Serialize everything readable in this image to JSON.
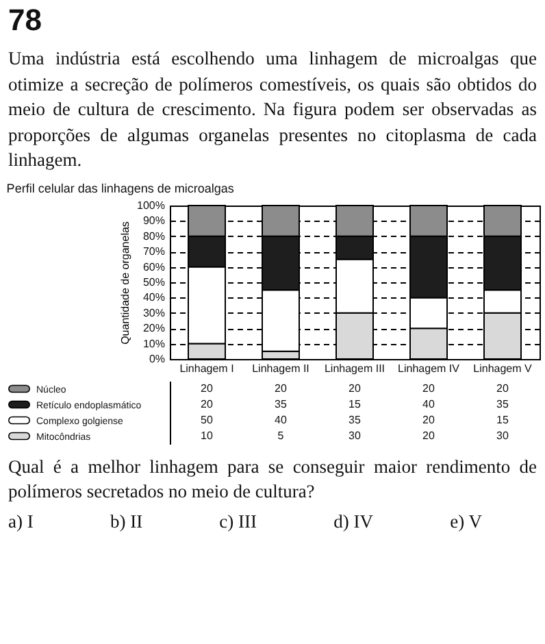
{
  "chart_data": {
    "type": "bar",
    "stacked": true,
    "title": "Perfil celular das linhagens de microalgas",
    "ylabel": "Quantidade de organelas",
    "categories": [
      "Linhagem I",
      "Linhagem II",
      "Linhagem III",
      "Linhagem IV",
      "Linhagem V"
    ],
    "series": [
      {
        "name": "Mitocôndrias",
        "color": "#d9d9d9",
        "values": [
          10,
          5,
          30,
          20,
          30
        ]
      },
      {
        "name": "Complexo golgiense",
        "color": "#ffffff",
        "values": [
          50,
          40,
          35,
          20,
          15
        ]
      },
      {
        "name": "Retículo endoplasmático",
        "color": "#1e1e1e",
        "values": [
          20,
          35,
          15,
          40,
          35
        ]
      },
      {
        "name": "Núcleo",
        "color": "#8c8c8c",
        "values": [
          20,
          20,
          20,
          20,
          20
        ]
      }
    ],
    "ylim": [
      0,
      100
    ],
    "yticks": [
      {
        "value": 0,
        "label": "0%"
      },
      {
        "value": 10,
        "label": "10%"
      },
      {
        "value": 20,
        "label": "20%"
      },
      {
        "value": 30,
        "label": "30%"
      },
      {
        "value": 40,
        "label": "40%"
      },
      {
        "value": 50,
        "label": "50%"
      },
      {
        "value": 60,
        "label": "60%"
      },
      {
        "value": 70,
        "label": "70%"
      },
      {
        "value": 80,
        "label": "80%"
      },
      {
        "value": 90,
        "label": "90%"
      },
      {
        "value": 100,
        "label": "100%"
      }
    ],
    "grid": "y",
    "line_style": "dashed",
    "legend": "bottom left",
    "data_labels": true,
    "annotations": [
      "78",
      "Uma indústria está escolhendo uma linhagem de microalgas que otimize a secreção de polímeros comestíveis, os quais são obtidos do meio de cultura de crescimento. Na figura podem ser observadas as proporções de algumas organelas presentes no citoplasma de cada linhagem.",
      "Qual é a melhor linhagem para se conseguir maior rendimento de polímeros secretados no meio de cultura?",
      "a) I",
      "b) II",
      "c) III",
      "d) IV",
      "e) V"
    ]
  }
}
